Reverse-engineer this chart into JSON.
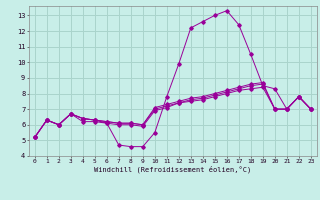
{
  "title": "",
  "xlabel": "Windchill (Refroidissement éolien,°C)",
  "ylabel": "",
  "bg_color": "#c8eee8",
  "grid_color": "#aad4cc",
  "line_color": "#990099",
  "xlim": [
    -0.5,
    23.5
  ],
  "ylim": [
    4,
    13.6
  ],
  "yticks": [
    4,
    5,
    6,
    7,
    8,
    9,
    10,
    11,
    12,
    13
  ],
  "xticks": [
    0,
    1,
    2,
    3,
    4,
    5,
    6,
    7,
    8,
    9,
    10,
    11,
    12,
    13,
    14,
    15,
    16,
    17,
    18,
    19,
    20,
    21,
    22,
    23
  ],
  "series": [
    [
      5.2,
      6.3,
      6.0,
      6.7,
      6.2,
      6.2,
      6.1,
      4.7,
      4.6,
      4.6,
      5.5,
      7.8,
      9.9,
      12.2,
      12.6,
      13.0,
      13.3,
      12.4,
      10.5,
      8.5,
      8.3,
      7.0,
      7.8,
      7.0
    ],
    [
      5.2,
      6.3,
      6.0,
      6.7,
      6.4,
      6.3,
      6.1,
      6.0,
      6.0,
      5.9,
      6.9,
      7.1,
      7.4,
      7.5,
      7.6,
      7.8,
      8.0,
      8.2,
      8.3,
      8.4,
      7.0,
      7.0,
      7.8,
      7.0
    ],
    [
      5.2,
      6.3,
      6.0,
      6.7,
      6.4,
      6.3,
      6.2,
      6.1,
      6.1,
      6.0,
      7.0,
      7.2,
      7.4,
      7.6,
      7.7,
      7.9,
      8.1,
      8.3,
      8.5,
      8.6,
      7.0,
      7.0,
      7.8,
      7.0
    ],
    [
      5.2,
      6.3,
      6.0,
      6.7,
      6.4,
      6.3,
      6.2,
      6.1,
      6.1,
      6.0,
      7.1,
      7.3,
      7.5,
      7.7,
      7.8,
      8.0,
      8.2,
      8.4,
      8.6,
      8.7,
      7.0,
      7.0,
      7.8,
      7.0
    ]
  ]
}
